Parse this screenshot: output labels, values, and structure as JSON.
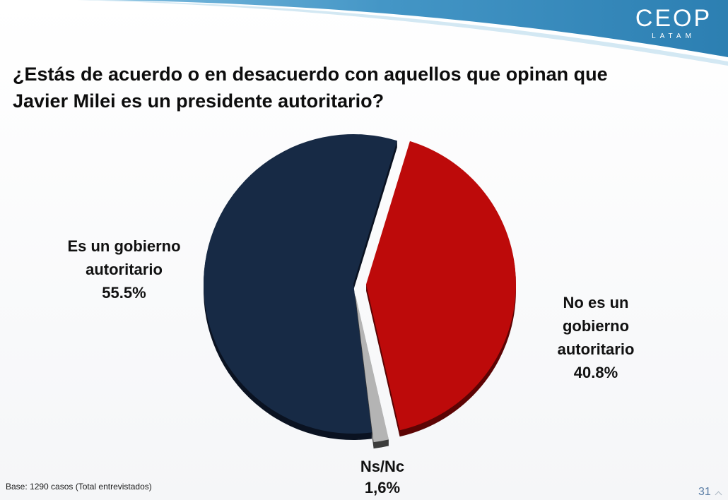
{
  "header": {
    "logo_name": "CEOP",
    "logo_sub": "LATAM"
  },
  "chart_data": {
    "type": "pie",
    "title": "¿Estás de acuerdo o en desacuerdo con aquellos que opinan que Javier Milei es un presidente autoritario?",
    "slices": [
      {
        "label": "Es un gobierno autoritario",
        "value": 55.5,
        "value_label": "55.5%",
        "color": "#172a45",
        "shadow_color": "#0a1221"
      },
      {
        "label": "No es un gobierno autoritario",
        "value": 40.8,
        "value_label": "40.8%",
        "color": "#bd0a0a",
        "shadow_color": "#5c0404"
      },
      {
        "label": "Ns/Nc",
        "value": 1.6,
        "value_label": "1,6%",
        "color": "#b4b4b4",
        "shadow_color": "#3c3c3c"
      }
    ]
  },
  "footer": {
    "base_note": "Base: 1290 casos (Total entrevistados)",
    "page_number": "31"
  },
  "icons": {
    "page_caret": "caret-up-icon"
  }
}
